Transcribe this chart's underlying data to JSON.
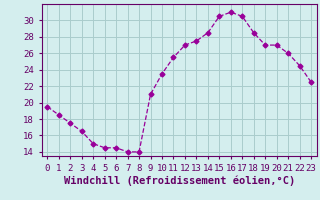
{
  "x": [
    0,
    1,
    2,
    3,
    4,
    5,
    6,
    7,
    8,
    9,
    10,
    11,
    12,
    13,
    14,
    15,
    16,
    17,
    18,
    19,
    20,
    21,
    22,
    23
  ],
  "y": [
    19.5,
    18.5,
    17.5,
    16.5,
    15.0,
    14.5,
    14.5,
    14.0,
    14.0,
    21.0,
    23.5,
    25.5,
    27.0,
    27.5,
    28.5,
    30.5,
    31.0,
    30.5,
    28.5,
    27.0,
    27.0,
    26.0,
    24.5,
    22.5
  ],
  "line_color": "#990099",
  "marker": "D",
  "marker_size": 2.5,
  "bg_color": "#d4eeee",
  "grid_color": "#aacccc",
  "xlabel": "Windchill (Refroidissement éolien,°C)",
  "xlabel_color": "#660066",
  "ylabel_ticks": [
    14,
    16,
    18,
    20,
    22,
    24,
    26,
    28,
    30
  ],
  "xtick_labels": [
    "0",
    "1",
    "2",
    "3",
    "4",
    "5",
    "6",
    "7",
    "8",
    "9",
    "10",
    "11",
    "12",
    "13",
    "14",
    "15",
    "16",
    "17",
    "18",
    "19",
    "20",
    "21",
    "22",
    "23"
  ],
  "ylim": [
    13.5,
    32.0
  ],
  "xlim": [
    -0.5,
    23.5
  ],
  "tick_fontsize": 6.5,
  "xlabel_fontsize": 7.5
}
